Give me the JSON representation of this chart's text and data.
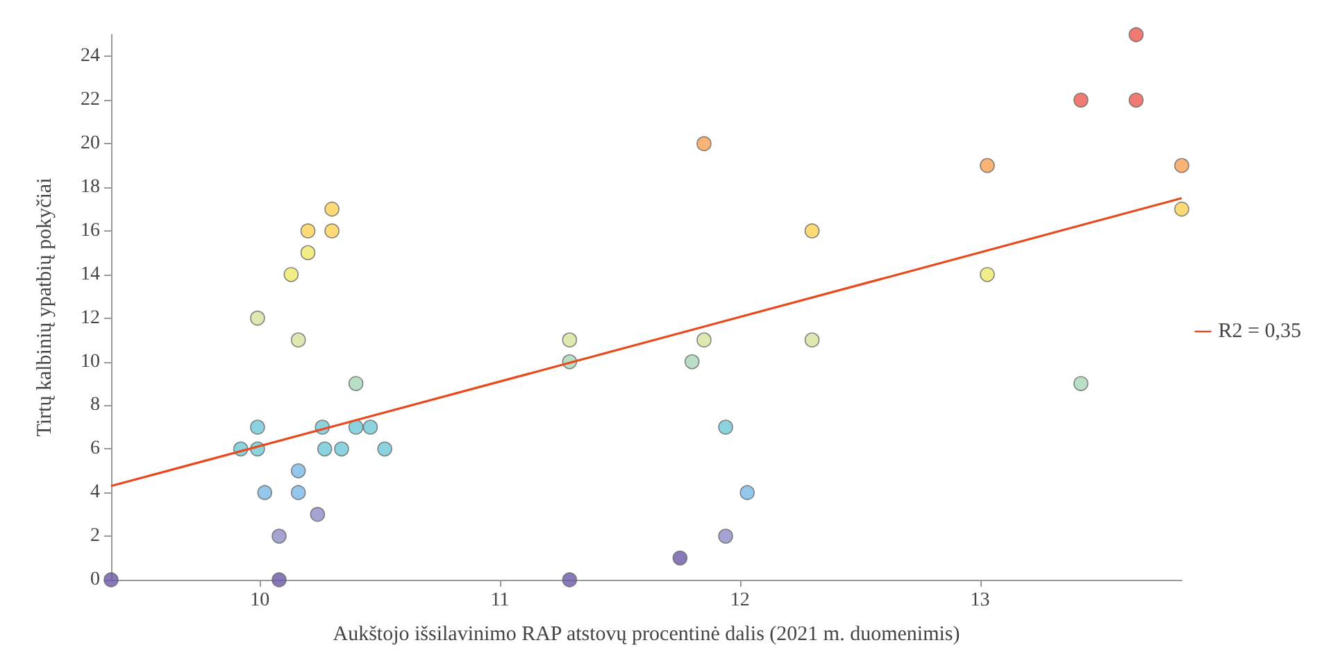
{
  "chart_data": {
    "type": "scatter",
    "xlabel": "Aukštojo išsilavinimo RAP atstovų procentinė dalis (2021 m. duomenimis)",
    "ylabel": "Tirtų kalbinių ypatbių pokyčiai",
    "xlim": [
      9.38,
      13.84
    ],
    "xticks": [
      10,
      11,
      12,
      13
    ],
    "ylim": [
      0,
      25
    ],
    "yticks": [
      0,
      2,
      4,
      6,
      8,
      10,
      12,
      14,
      16,
      18,
      20,
      22,
      24
    ],
    "grid": false,
    "legend": "right",
    "series": [
      {
        "marker": "circle",
        "x": [
          9.38,
          9.92,
          9.99,
          9.99,
          9.99,
          10.02,
          10.08,
          10.08,
          10.13,
          10.16,
          10.16,
          10.16,
          10.2,
          10.2,
          10.24,
          10.26,
          10.27,
          10.3,
          10.3,
          10.34,
          10.4,
          10.4,
          10.46,
          10.52,
          11.29,
          11.29,
          11.29,
          11.75,
          11.8,
          11.85,
          11.85,
          11.94,
          11.94,
          12.03,
          12.3,
          12.3,
          13.03,
          13.03,
          13.42,
          13.42,
          13.65,
          13.65,
          13.84,
          13.84
        ],
        "values": [
          0,
          6,
          7,
          6,
          12,
          4,
          2,
          0,
          14,
          11,
          5,
          4,
          15,
          16,
          3,
          7,
          6,
          17,
          16,
          6,
          9,
          7,
          7,
          6,
          0,
          11,
          10,
          1,
          10,
          20,
          11,
          7,
          2,
          4,
          16,
          11,
          19,
          14,
          22,
          9,
          25,
          22,
          19,
          17
        ],
        "colors": [
          "#6b58a6",
          "#6fc8d8",
          "#6fc8d8",
          "#6fc8d8",
          "#d5e49c",
          "#7ab8e6",
          "#8e8cc7",
          "#6b58a6",
          "#eeea6a",
          "#d5e49c",
          "#7ab8e6",
          "#7ab8e6",
          "#eeea6a",
          "#fdd255",
          "#8e8cc7",
          "#6fc8d8",
          "#6fc8d8",
          "#fdd255",
          "#fdd255",
          "#6fc8d8",
          "#a8d8b8",
          "#6fc8d8",
          "#6fc8d8",
          "#6fc8d8",
          "#6b58a6",
          "#d5e49c",
          "#a8d8b8",
          "#6b58a6",
          "#a8d8b8",
          "#f8a055",
          "#d5e49c",
          "#6fc8d8",
          "#8e8cc7",
          "#7ab8e6",
          "#fdd255",
          "#d5e49c",
          "#f8a055",
          "#eeea6a",
          "#ec5a4f",
          "#a8d8b8",
          "#ec5a4f",
          "#ec5a4f",
          "#f8a055",
          "#fdd255"
        ]
      },
      {
        "type": "line",
        "name": "R2 = 0,35",
        "color": "#e84a1f",
        "line_style": "solid",
        "marker": "none",
        "x": [
          9.38,
          13.84
        ],
        "values": [
          4.3,
          17.5
        ]
      }
    ]
  }
}
